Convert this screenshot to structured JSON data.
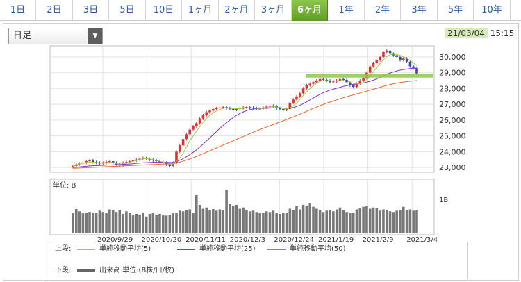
{
  "tabs": [
    {
      "label": "1日",
      "active": false
    },
    {
      "label": "2日",
      "active": false
    },
    {
      "label": "3日",
      "active": false
    },
    {
      "label": "5日",
      "active": false
    },
    {
      "label": "10日",
      "active": false
    },
    {
      "label": "1ヶ月",
      "active": false
    },
    {
      "label": "2ヶ月",
      "active": false
    },
    {
      "label": "3ヶ月",
      "active": false
    },
    {
      "label": "6ヶ月",
      "active": true
    },
    {
      "label": "1年",
      "active": false
    },
    {
      "label": "2年",
      "active": false
    },
    {
      "label": "3年",
      "active": false
    },
    {
      "label": "5年",
      "active": false
    },
    {
      "label": "10年",
      "active": false
    }
  ],
  "interval_select": {
    "value": "日足"
  },
  "datetime": {
    "date": "21/03/04",
    "time": "15:15"
  },
  "legend": {
    "upper_label": "上段:",
    "lower_label": "下段:",
    "ma5": "単純移動平均(5)",
    "ma25": "単純移動平均(25)",
    "ma50": "単純移動平均(50)",
    "volume": "出来高 単位:(B株/口/枚)"
  },
  "colors": {
    "up": "#e03030",
    "down": "#3a4fa0",
    "ma5": "#9ccc44",
    "ma25": "#8b2bd6",
    "ma50": "#e8652a",
    "active_tab": "#6aa82c",
    "highlight": "#8cc84a"
  },
  "chart_data": [
    {
      "type": "candlestick",
      "y_ticks": [
        "30,000",
        "29,000",
        "28,000",
        "27,000",
        "26,000",
        "25,000",
        "24,000",
        "23,000"
      ],
      "ylim": [
        22700,
        30700
      ],
      "x_ticks": [
        "2020/9/29",
        "2020/10/20",
        "2020/11/11",
        "2020/12/3",
        "2020/12/24",
        "2021/1/19",
        "2021/2/9",
        "2021/3/4"
      ],
      "closes": [
        23100,
        23200,
        23250,
        23300,
        23400,
        23450,
        23350,
        23300,
        23250,
        23300,
        23350,
        23400,
        23300,
        23200,
        23150,
        23300,
        23350,
        23400,
        23450,
        23500,
        23550,
        23600,
        23550,
        23500,
        23450,
        23400,
        23350,
        23300,
        23200,
        23100,
        23300,
        24000,
        24400,
        24800,
        25100,
        25400,
        25600,
        25800,
        26100,
        26300,
        26500,
        26600,
        26700,
        26750,
        26800,
        26820,
        26750,
        26700,
        26650,
        26700,
        26750,
        26800,
        26820,
        26780,
        26750,
        26700,
        26720,
        26800,
        26850,
        26900,
        26880,
        26750,
        26700,
        26650,
        26700,
        27100,
        27300,
        27500,
        27700,
        28000,
        28200,
        28300,
        28400,
        28500,
        28600,
        28550,
        28500,
        28400,
        28450,
        28500,
        28600,
        28550,
        28400,
        28200,
        28100,
        28300,
        28500,
        28650,
        29000,
        29400,
        29600,
        29800,
        30000,
        30300,
        30400,
        30200,
        30100,
        30000,
        29800,
        29900,
        29700,
        29400,
        29300,
        28950
      ],
      "ma5": [
        23080,
        23150,
        23220,
        23280,
        23330,
        23360,
        23340,
        23310,
        23280,
        23270,
        23290,
        23320,
        23310,
        23260,
        23220,
        23240,
        23290,
        23330,
        23390,
        23440,
        23500,
        23550,
        23560,
        23540,
        23500,
        23450,
        23400,
        23350,
        23290,
        23230,
        23230,
        23390,
        23600,
        23900,
        24300,
        24700,
        25000,
        25300,
        25600,
        25850,
        26100,
        26300,
        26450,
        26580,
        26680,
        26740,
        26770,
        26750,
        26730,
        26720,
        26720,
        26740,
        26760,
        26770,
        26770,
        26750,
        26740,
        26750,
        26780,
        26820,
        26850,
        26830,
        26780,
        26730,
        26700,
        26780,
        26900,
        27060,
        27300,
        27560,
        27780,
        28000,
        28180,
        28340,
        28450,
        28490,
        28500,
        28480,
        28480,
        28480,
        28500,
        28510,
        28480,
        28400,
        28320,
        28300,
        28320,
        28360,
        28520,
        28780,
        29060,
        29330,
        29580,
        29820,
        30020,
        30140,
        30170,
        30150,
        30100,
        30000,
        29920,
        29760,
        29620,
        29450
      ],
      "ma25": [
        23000,
        23020,
        23040,
        23060,
        23080,
        23100,
        23110,
        23120,
        23130,
        23140,
        23150,
        23160,
        23170,
        23180,
        23190,
        23200,
        23210,
        23220,
        23240,
        23260,
        23280,
        23300,
        23310,
        23320,
        23330,
        23330,
        23340,
        23340,
        23330,
        23320,
        23320,
        23380,
        23460,
        23560,
        23680,
        23820,
        23960,
        24120,
        24300,
        24480,
        24680,
        24880,
        25080,
        25280,
        25480,
        25660,
        25840,
        26000,
        26160,
        26300,
        26420,
        26520,
        26600,
        26660,
        26700,
        26720,
        26730,
        26740,
        26750,
        26760,
        26770,
        26770,
        26760,
        26750,
        26740,
        26760,
        26800,
        26860,
        26940,
        27040,
        27160,
        27280,
        27400,
        27520,
        27630,
        27730,
        27820,
        27900,
        27960,
        28020,
        28080,
        28140,
        28180,
        28220,
        28260,
        28290,
        28320,
        28350,
        28400,
        28460,
        28530,
        28610,
        28700,
        28800,
        28900,
        28980,
        29050,
        29110,
        29160,
        29200,
        29230,
        29260,
        29280,
        29280
      ],
      "ma50": [
        22950,
        22960,
        22970,
        22980,
        22990,
        23000,
        23010,
        23020,
        23030,
        23040,
        23050,
        23060,
        23070,
        23080,
        23090,
        23100,
        23110,
        23120,
        23130,
        23140,
        23150,
        23160,
        23170,
        23180,
        23190,
        23200,
        23210,
        23220,
        23230,
        23240,
        23250,
        23290,
        23340,
        23400,
        23470,
        23540,
        23620,
        23700,
        23790,
        23880,
        23970,
        24060,
        24150,
        24240,
        24330,
        24420,
        24510,
        24600,
        24690,
        24780,
        24870,
        24960,
        25050,
        25140,
        25230,
        25320,
        25400,
        25480,
        25560,
        25640,
        25720,
        25800,
        25880,
        25960,
        26040,
        26120,
        26200,
        26290,
        26380,
        26470,
        26560,
        26650,
        26740,
        26830,
        26910,
        26990,
        27070,
        27140,
        27210,
        27280,
        27350,
        27420,
        27480,
        27540,
        27600,
        27660,
        27720,
        27780,
        27840,
        27900,
        27960,
        28020,
        28080,
        28140,
        28200,
        28250,
        28300,
        28340,
        28380,
        28410,
        28440,
        28460,
        28480,
        28500
      ],
      "resistance_level": 28800
    },
    {
      "type": "bar",
      "title": "単位: B",
      "y_ticks": [
        "1B"
      ],
      "ylim": [
        0,
        1.5
      ],
      "values": [
        0.62,
        0.75,
        0.68,
        0.62,
        0.64,
        0.66,
        0.63,
        0.64,
        0.7,
        0.66,
        0.63,
        0.74,
        0.72,
        0.66,
        0.72,
        0.6,
        0.68,
        0.64,
        0.56,
        0.6,
        0.58,
        0.64,
        0.52,
        0.6,
        0.62,
        0.58,
        0.6,
        0.56,
        0.55,
        0.58,
        0.62,
        0.64,
        0.7,
        0.68,
        0.72,
        0.74,
        0.62,
        1.18,
        0.88,
        0.76,
        0.8,
        0.72,
        0.75,
        0.7,
        0.74,
        0.72,
        1.35,
        0.92,
        0.86,
        0.88,
        0.76,
        0.8,
        0.72,
        0.68,
        0.7,
        0.66,
        0.62,
        0.64,
        0.68,
        0.66,
        0.7,
        0.62,
        0.6,
        0.64,
        0.62,
        0.76,
        0.72,
        0.84,
        0.74,
        0.88,
        0.86,
        0.94,
        0.82,
        0.76,
        0.72,
        0.66,
        0.7,
        0.72,
        0.68,
        0.74,
        0.8,
        0.72,
        0.66,
        0.62,
        0.64,
        0.74,
        0.78,
        0.82,
        0.84,
        0.76,
        0.8,
        0.78,
        0.7,
        0.74,
        0.72,
        0.68,
        0.66,
        0.7,
        0.72,
        0.82,
        0.72,
        0.74,
        0.7,
        0.72
      ]
    }
  ]
}
